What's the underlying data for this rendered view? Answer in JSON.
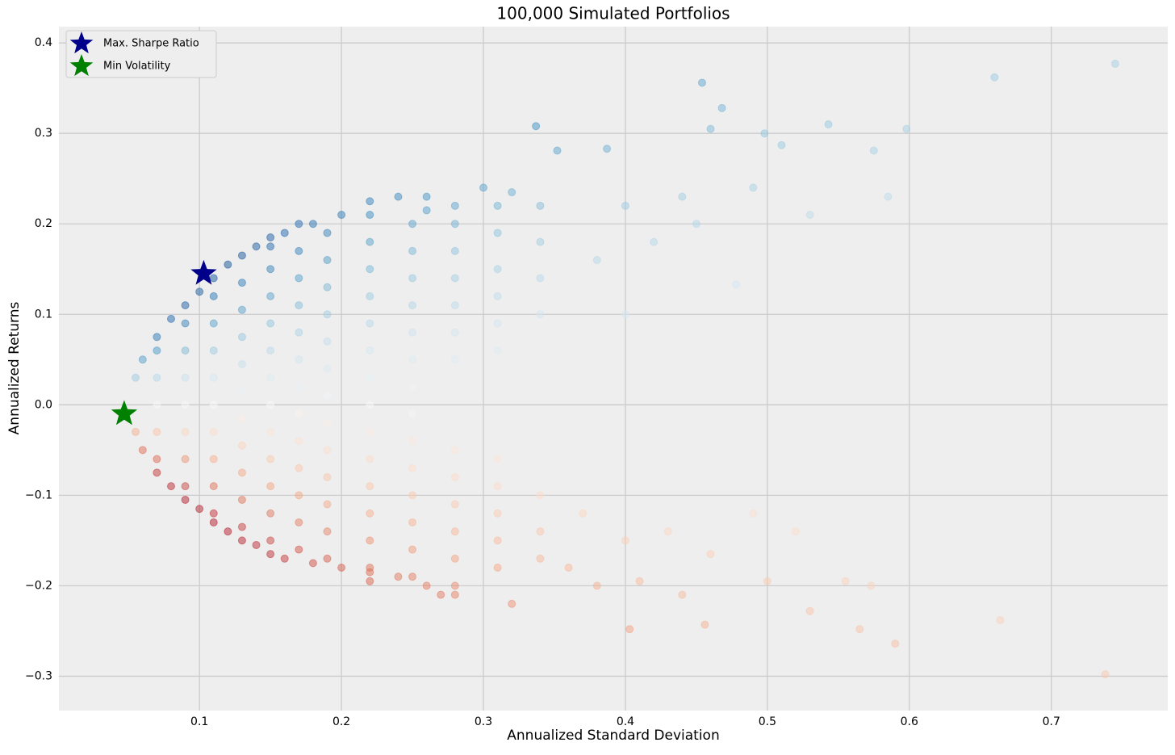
{
  "chart_data": {
    "type": "scatter",
    "title": "100,000 Simulated Portfolios",
    "x_label": "Annualized Standard Deviation",
    "y_label": "Annualized Returns",
    "xlim": [
      0.001,
      0.782
    ],
    "ylim": [
      -0.338,
      0.418
    ],
    "xticks": [
      0.1,
      0.2,
      0.3,
      0.4,
      0.5,
      0.6,
      0.7
    ],
    "yticks": [
      {
        "value": -0.3,
        "label": "−0.3"
      },
      {
        "value": -0.2,
        "label": "−0.2"
      },
      {
        "value": -0.1,
        "label": "−0.1"
      },
      {
        "value": 0,
        "label": "0.0"
      },
      0.1,
      0.2,
      0.3,
      0.4
    ],
    "grid": true,
    "legend": "upper left",
    "colormap": [
      "#67001f",
      "#b2182b",
      "#d6604d",
      "#f4a582",
      "#fddbc7",
      "#f7f7f7",
      "#d1e5f0",
      "#92c5de",
      "#4393c3",
      "#2166ac",
      "#053061"
    ],
    "color_range": [
      -1.5,
      1.5
    ],
    "opacity": 0.5,
    "x": [
      0.055,
      0.06,
      0.07,
      0.08,
      0.09,
      0.1,
      0.11,
      0.12,
      0.13,
      0.14,
      0.15,
      0.16,
      0.17,
      0.18,
      0.2,
      0.22,
      0.24,
      0.26,
      0.28,
      0.055,
      0.06,
      0.07,
      0.08,
      0.09,
      0.1,
      0.11,
      0.12,
      0.13,
      0.14,
      0.15,
      0.16,
      0.18,
      0.2,
      0.22,
      0.24,
      0.26,
      0.28,
      0.07,
      0.07,
      0.07,
      0.07,
      0.07,
      0.09,
      0.09,
      0.09,
      0.09,
      0.09,
      0.09,
      0.09,
      0.11,
      0.11,
      0.11,
      0.11,
      0.11,
      0.11,
      0.11,
      0.11,
      0.11,
      0.13,
      0.13,
      0.13,
      0.13,
      0.13,
      0.13,
      0.13,
      0.13,
      0.13,
      0.13,
      0.15,
      0.15,
      0.15,
      0.15,
      0.15,
      0.15,
      0.15,
      0.15,
      0.15,
      0.15,
      0.15,
      0.15,
      0.17,
      0.17,
      0.17,
      0.17,
      0.17,
      0.17,
      0.17,
      0.17,
      0.17,
      0.17,
      0.17,
      0.17,
      0.19,
      0.19,
      0.19,
      0.19,
      0.19,
      0.19,
      0.19,
      0.19,
      0.19,
      0.19,
      0.19,
      0.19,
      0.19,
      0.22,
      0.22,
      0.22,
      0.22,
      0.22,
      0.22,
      0.22,
      0.22,
      0.22,
      0.22,
      0.22,
      0.22,
      0.22,
      0.22,
      0.25,
      0.25,
      0.25,
      0.25,
      0.25,
      0.25,
      0.25,
      0.25,
      0.25,
      0.25,
      0.25,
      0.25,
      0.25,
      0.25,
      0.28,
      0.28,
      0.28,
      0.28,
      0.28,
      0.28,
      0.28,
      0.28,
      0.28,
      0.28,
      0.28,
      0.28,
      0.31,
      0.31,
      0.31,
      0.31,
      0.31,
      0.31,
      0.31,
      0.31,
      0.31,
      0.31,
      0.31,
      0.34,
      0.34,
      0.34,
      0.34,
      0.34,
      0.34,
      0.34,
      0.337,
      0.454,
      0.468,
      0.46,
      0.498,
      0.51,
      0.543,
      0.575,
      0.598,
      0.66,
      0.745,
      0.387,
      0.352,
      0.4,
      0.44,
      0.49,
      0.53,
      0.585,
      0.38,
      0.42,
      0.45,
      0.478,
      0.4,
      0.43,
      0.46,
      0.49,
      0.5,
      0.52,
      0.555,
      0.573,
      0.59,
      0.565,
      0.53,
      0.664,
      0.738,
      0.403,
      0.456,
      0.41,
      0.44,
      0.36,
      0.38,
      0.4,
      0.37,
      0.32,
      0.27,
      0.22,
      0.3,
      0.32,
      0.26
    ],
    "values": [
      0.03,
      0.05,
      0.075,
      0.095,
      0.11,
      0.125,
      0.14,
      0.155,
      0.165,
      0.175,
      0.185,
      0.19,
      0.2,
      0.2,
      0.21,
      0.225,
      0.23,
      0.215,
      0.22,
      -0.03,
      -0.05,
      -0.075,
      -0.09,
      -0.105,
      -0.115,
      -0.13,
      -0.14,
      -0.15,
      -0.155,
      -0.165,
      -0.17,
      -0.175,
      -0.18,
      -0.185,
      -0.19,
      -0.2,
      -0.21,
      -0.06,
      -0.03,
      0,
      0.03,
      0.06,
      -0.09,
      -0.06,
      -0.03,
      0,
      0.03,
      0.06,
      0.09,
      -0.12,
      -0.09,
      -0.06,
      -0.03,
      0,
      0.03,
      0.06,
      0.09,
      0.12,
      -0.135,
      -0.105,
      -0.075,
      -0.045,
      -0.015,
      0.015,
      0.045,
      0.075,
      0.105,
      0.135,
      -0.15,
      -0.12,
      -0.09,
      -0.06,
      -0.03,
      0,
      0.03,
      0.06,
      0.09,
      0.12,
      0.15,
      0.175,
      -0.16,
      -0.13,
      -0.1,
      -0.07,
      -0.04,
      -0.01,
      0.02,
      0.05,
      0.08,
      0.11,
      0.14,
      0.17,
      -0.17,
      -0.14,
      -0.11,
      -0.08,
      -0.05,
      -0.02,
      0.01,
      0.04,
      0.07,
      0.1,
      0.13,
      0.16,
      0.19,
      -0.18,
      -0.15,
      -0.12,
      -0.09,
      -0.06,
      -0.03,
      0,
      0.03,
      0.06,
      0.09,
      0.12,
      0.15,
      0.18,
      0.21,
      -0.19,
      -0.16,
      -0.13,
      -0.1,
      -0.07,
      -0.04,
      -0.01,
      0.02,
      0.05,
      0.08,
      0.11,
      0.14,
      0.17,
      0.2,
      -0.2,
      -0.17,
      -0.14,
      -0.11,
      -0.08,
      -0.05,
      0.05,
      0.08,
      0.11,
      0.14,
      0.17,
      0.2,
      -0.18,
      -0.15,
      -0.12,
      -0.09,
      -0.06,
      0.06,
      0.09,
      0.12,
      0.15,
      0.19,
      0.22,
      -0.17,
      -0.14,
      -0.1,
      0.1,
      0.14,
      0.18,
      0.22,
      0.308,
      0.356,
      0.328,
      0.305,
      0.3,
      0.287,
      0.31,
      0.281,
      0.305,
      0.362,
      0.377,
      0.283,
      0.281,
      0.22,
      0.23,
      0.24,
      0.21,
      0.23,
      0.16,
      0.18,
      0.2,
      0.133,
      0.1,
      -0.14,
      -0.165,
      -0.12,
      -0.195,
      -0.14,
      -0.195,
      -0.2,
      -0.264,
      -0.248,
      -0.228,
      -0.238,
      -0.298,
      -0.248,
      -0.243,
      -0.195,
      -0.21,
      -0.18,
      -0.2,
      -0.15,
      -0.12,
      -0.22,
      -0.21,
      -0.195,
      0.24,
      0.235,
      0.23
    ],
    "markers": [
      {
        "name": "Max. Sharpe Ratio",
        "x": 0.103,
        "y": 0.145,
        "color": "#00008b"
      },
      {
        "name": "Min Volatility",
        "x": 0.047,
        "y": -0.01,
        "color": "#008000"
      }
    ]
  }
}
